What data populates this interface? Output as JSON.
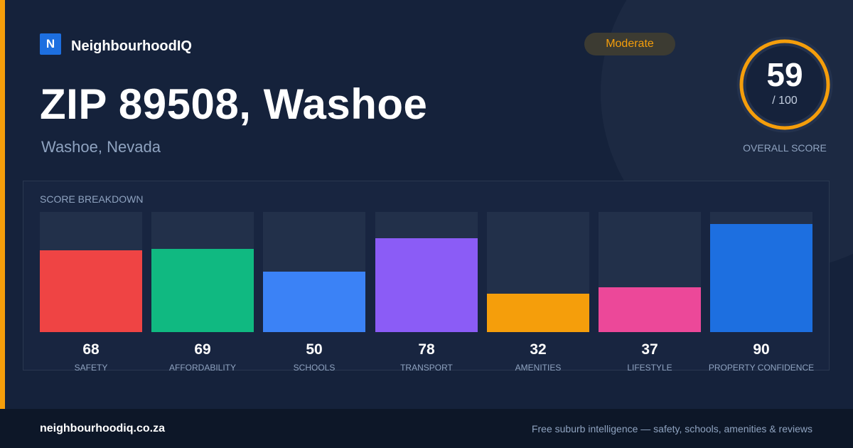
{
  "brand": {
    "logo_letter": "N",
    "name": "NeighbourhoodIQ"
  },
  "header": {
    "title": "ZIP 89508, Washoe",
    "subtitle": "Washoe, Nevada"
  },
  "badge": {
    "label": "Moderate",
    "color": "#f59e0b"
  },
  "overall": {
    "score": "59",
    "suffix": "/ 100",
    "caption": "OVERALL SCORE",
    "max": 100,
    "ring_color": "#f59e0b"
  },
  "breakdown": {
    "title": "SCORE BREAKDOWN"
  },
  "chart_data": {
    "type": "bar",
    "title": "SCORE BREAKDOWN",
    "categories": [
      "SAFETY",
      "AFFORDABILITY",
      "SCHOOLS",
      "TRANSPORT",
      "AMENITIES",
      "LIFESTYLE",
      "PROPERTY CONFIDENCE"
    ],
    "values": [
      68,
      69,
      50,
      78,
      32,
      37,
      90
    ],
    "colors": [
      "#ef4444",
      "#10b981",
      "#3b82f6",
      "#8b5cf6",
      "#f59e0b",
      "#ec4899",
      "#1d6fe0"
    ],
    "ylim": [
      0,
      100
    ],
    "grid": false
  },
  "footer": {
    "url": "neighbourhoodiq.co.za",
    "tagline": "Free suburb intelligence — safety, schools, amenities & reviews"
  }
}
